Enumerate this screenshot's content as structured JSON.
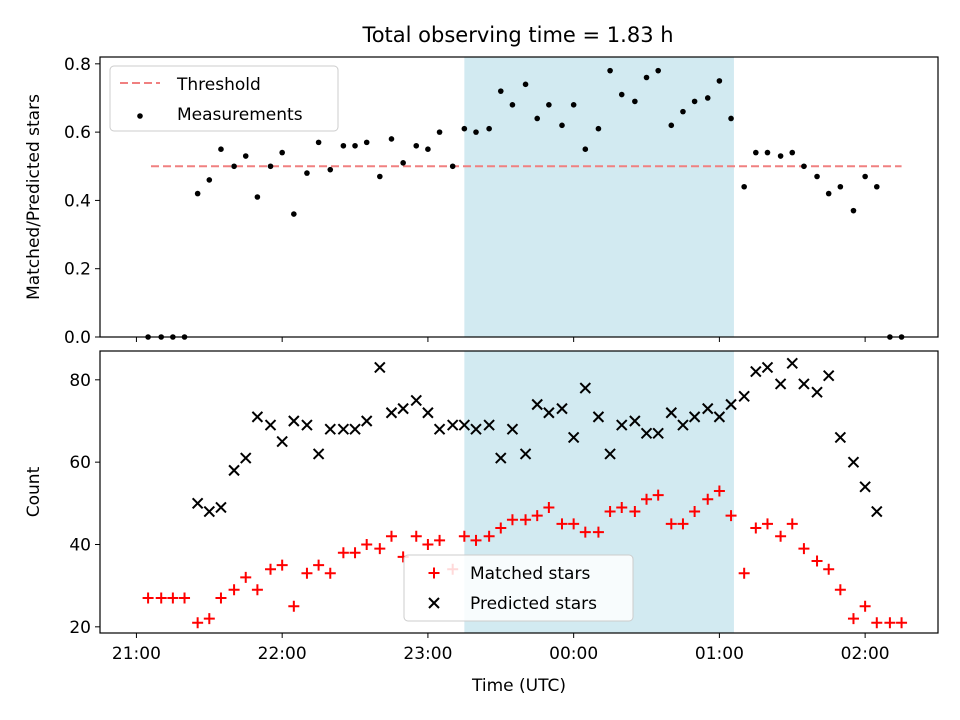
{
  "figure_title": "Total observing time = 1.83 h",
  "chart_data": [
    {
      "type": "scatter",
      "title": "Total observing time = 1.83 h",
      "xlabel": "",
      "ylabel": "Matched/Predicted stars",
      "xlim": [
        -0.25,
        5.5
      ],
      "ylim": [
        0,
        0.82
      ],
      "x_tick_labels": [
        "21:00",
        "22:00",
        "23:00",
        "00:00",
        "01:00",
        "02:00"
      ],
      "x_tick_values": [
        0,
        1,
        2,
        3,
        4,
        5
      ],
      "x_tick_labels_visible": false,
      "y_ticks": [
        0,
        0.2,
        0.4,
        0.6,
        0.8
      ],
      "y_tick_labels": [
        "0.0",
        "0.2",
        "0.4",
        "0.6",
        "0.8"
      ],
      "grid": false,
      "legend_placement": "upper-left",
      "shaded_interval": [
        2.25,
        4.1
      ],
      "shaded_color": "#add8e6",
      "series": [
        {
          "name": "Threshold",
          "kind": "dashed-line",
          "color": "#f08080",
          "x": [
            0.1,
            5.25
          ],
          "y": [
            0.5,
            0.5
          ]
        },
        {
          "name": "Measurements",
          "kind": "dot",
          "color": "#000000",
          "x": [
            0.08,
            0.17,
            0.25,
            0.33,
            0.42,
            0.5,
            0.58,
            0.67,
            0.75,
            0.83,
            0.92,
            1.0,
            1.08,
            1.17,
            1.25,
            1.33,
            1.42,
            1.5,
            1.58,
            1.67,
            1.75,
            1.83,
            1.92,
            2.0,
            2.08,
            2.17,
            2.25,
            2.33,
            2.42,
            2.5,
            2.58,
            2.67,
            2.75,
            2.83,
            2.92,
            3.0,
            3.08,
            3.17,
            3.25,
            3.33,
            3.42,
            3.5,
            3.58,
            3.67,
            3.75,
            3.83,
            3.92,
            4.0,
            4.08,
            4.17,
            4.25,
            4.33,
            4.42,
            4.5,
            4.58,
            4.67,
            4.75,
            4.83,
            4.92,
            5.0,
            5.08,
            5.17,
            5.25
          ],
          "y": [
            0.0,
            0.0,
            0.0,
            0.0,
            0.42,
            0.46,
            0.55,
            0.5,
            0.53,
            0.41,
            0.5,
            0.54,
            0.36,
            0.48,
            0.57,
            0.49,
            0.56,
            0.56,
            0.57,
            0.47,
            0.58,
            0.51,
            0.56,
            0.55,
            0.6,
            0.5,
            0.61,
            0.6,
            0.61,
            0.72,
            0.68,
            0.74,
            0.64,
            0.68,
            0.62,
            0.68,
            0.55,
            0.61,
            0.78,
            0.71,
            0.69,
            0.76,
            0.78,
            0.62,
            0.66,
            0.69,
            0.7,
            0.75,
            0.64,
            0.44,
            0.54,
            0.54,
            0.53,
            0.54,
            0.5,
            0.47,
            0.42,
            0.44,
            0.37,
            0.47,
            0.44,
            0.0,
            0.0
          ]
        }
      ]
    },
    {
      "type": "scatter",
      "title": "",
      "xlabel": "Time (UTC)",
      "ylabel": "Count",
      "xlim": [
        -0.25,
        5.5
      ],
      "ylim": [
        18.5,
        87
      ],
      "x_tick_labels": [
        "21:00",
        "22:00",
        "23:00",
        "00:00",
        "01:00",
        "02:00"
      ],
      "x_tick_values": [
        0,
        1,
        2,
        3,
        4,
        5
      ],
      "y_ticks": [
        20,
        40,
        60,
        80
      ],
      "y_tick_labels": [
        "20",
        "40",
        "60",
        "80"
      ],
      "grid": false,
      "legend_placement": "lower-center",
      "shaded_interval": [
        2.25,
        4.1
      ],
      "shaded_color": "#add8e6",
      "series": [
        {
          "name": "Matched stars",
          "marker": "plus",
          "color": "#ff0000",
          "x": [
            0.08,
            0.17,
            0.25,
            0.33,
            0.42,
            0.5,
            0.58,
            0.67,
            0.75,
            0.83,
            0.92,
            1.0,
            1.08,
            1.17,
            1.25,
            1.33,
            1.42,
            1.5,
            1.58,
            1.67,
            1.75,
            1.83,
            1.92,
            2.0,
            2.08,
            2.17,
            2.25,
            2.33,
            2.42,
            2.5,
            2.58,
            2.67,
            2.75,
            2.83,
            2.92,
            3.0,
            3.08,
            3.17,
            3.25,
            3.33,
            3.42,
            3.5,
            3.58,
            3.67,
            3.75,
            3.83,
            3.92,
            4.0,
            4.08,
            4.17,
            4.25,
            4.33,
            4.42,
            4.5,
            4.58,
            4.67,
            4.75,
            4.83,
            4.92,
            5.0,
            5.08,
            5.17,
            5.25
          ],
          "y": [
            27,
            27,
            27,
            27,
            21,
            22,
            27,
            29,
            32,
            29,
            34,
            35,
            25,
            33,
            35,
            33,
            38,
            38,
            40,
            39,
            42,
            37,
            42,
            40,
            41,
            34,
            42,
            41,
            42,
            44,
            46,
            46,
            47,
            49,
            45,
            45,
            43,
            43,
            48,
            49,
            48,
            51,
            52,
            45,
            45,
            48,
            51,
            53,
            47,
            33,
            44,
            45,
            42,
            45,
            39,
            36,
            34,
            29,
            22,
            25,
            21,
            21,
            21
          ]
        },
        {
          "name": "Predicted stars",
          "marker": "x",
          "color": "#000000",
          "x": [
            0.42,
            0.5,
            0.58,
            0.67,
            0.75,
            0.83,
            0.92,
            1.0,
            1.08,
            1.17,
            1.25,
            1.33,
            1.42,
            1.5,
            1.58,
            1.67,
            1.75,
            1.83,
            1.92,
            2.0,
            2.08,
            2.17,
            2.25,
            2.33,
            2.42,
            2.5,
            2.58,
            2.67,
            2.75,
            2.83,
            2.92,
            3.0,
            3.08,
            3.17,
            3.25,
            3.33,
            3.42,
            3.5,
            3.58,
            3.67,
            3.75,
            3.83,
            3.92,
            4.0,
            4.08,
            4.17,
            4.25,
            4.33,
            4.42,
            4.5,
            4.58,
            4.67,
            4.75,
            4.83,
            4.92,
            5.0,
            5.08
          ],
          "y": [
            50,
            48,
            49,
            58,
            61,
            71,
            69,
            65,
            70,
            69,
            62,
            68,
            68,
            68,
            70,
            83,
            72,
            73,
            75,
            72,
            68,
            69,
            69,
            68,
            69,
            61,
            68,
            62,
            74,
            72,
            73,
            66,
            78,
            71,
            62,
            69,
            70,
            67,
            67,
            72,
            69,
            71,
            73,
            71,
            74,
            76,
            82,
            83,
            79,
            84,
            79,
            77,
            81,
            66,
            60,
            54,
            48
          ]
        }
      ]
    }
  ]
}
